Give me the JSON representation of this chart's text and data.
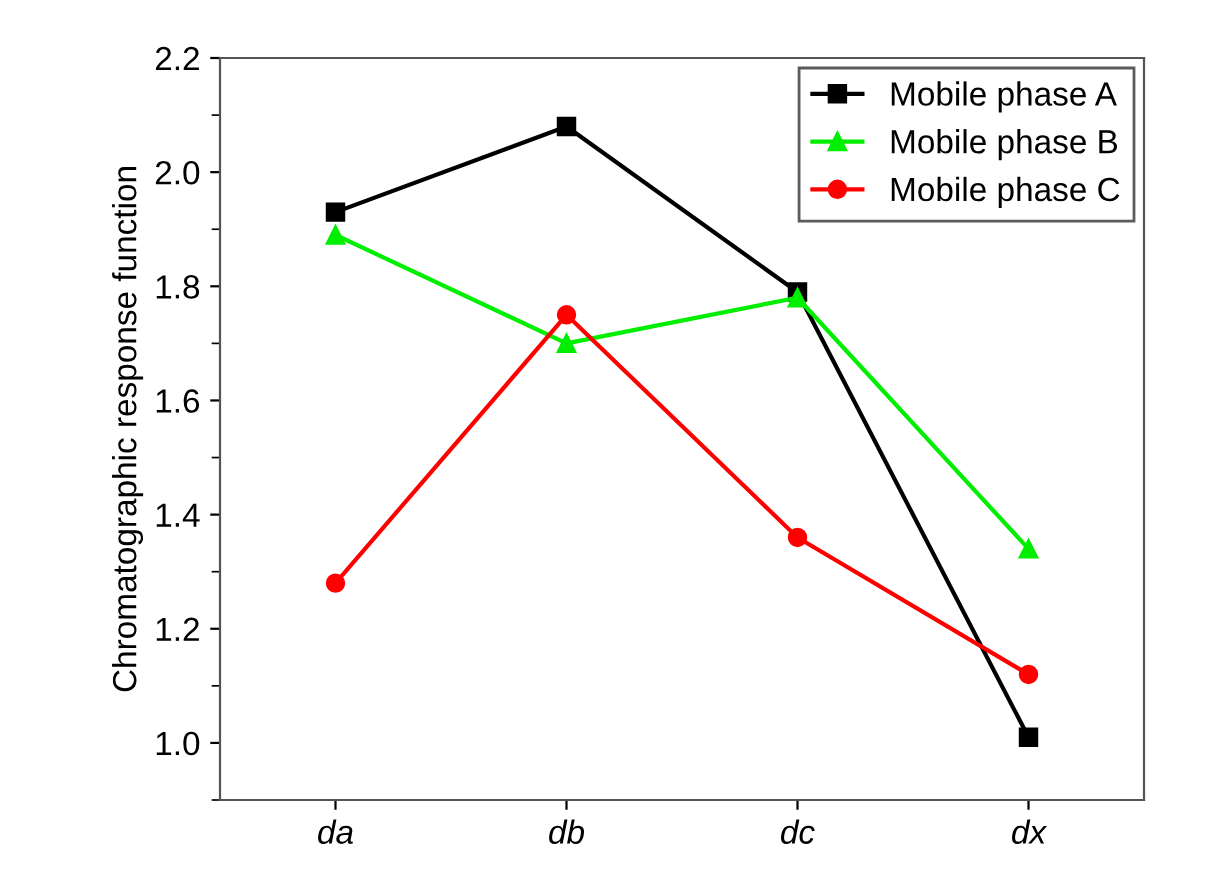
{
  "chart_data": {
    "type": "line",
    "ylabel": "Chromatographic response function",
    "categories": [
      "da",
      "db",
      "dc",
      "dx"
    ],
    "series": [
      {
        "name": "Mobile phase A",
        "color": "#000000",
        "marker": "square",
        "values": [
          1.93,
          2.08,
          1.79,
          1.01
        ]
      },
      {
        "name": "Mobile phase B",
        "color": "#00ee00",
        "marker": "triangle",
        "values": [
          1.89,
          1.7,
          1.78,
          1.34
        ]
      },
      {
        "name": "Mobile phase C",
        "color": "#ff0000",
        "marker": "circle",
        "values": [
          1.28,
          1.75,
          1.36,
          1.12
        ]
      }
    ],
    "ylim": [
      0.9,
      2.2
    ],
    "yticks": [
      {
        "value": 1.0,
        "label": "1.0"
      },
      1.2,
      1.4,
      1.6,
      1.8,
      {
        "value": 2.0,
        "label": "2.0"
      },
      2.2
    ],
    "grid": false,
    "legend": "top right",
    "line_style": "solid"
  }
}
